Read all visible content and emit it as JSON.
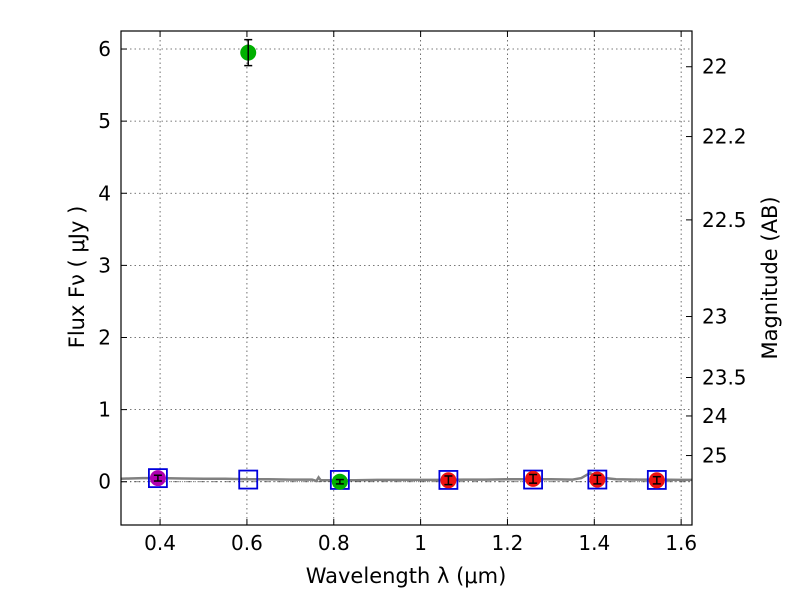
{
  "chart_data": {
    "type": "scatter",
    "xlabel": "Wavelength  λ (μm)",
    "ylabel": "Flux  Fν  ( μJy )",
    "ylabel_right": "Magnitude (AB)",
    "xlim": [
      0.31,
      1.625
    ],
    "ylim": [
      -0.6,
      6.25
    ],
    "grid": true,
    "x_ticks": [
      {
        "value": 0.4,
        "label": "0.4"
      },
      {
        "value": 0.6,
        "label": "0.6"
      },
      {
        "value": 0.8,
        "label": "0.8"
      },
      {
        "value": 1.0,
        "label": "1"
      },
      {
        "value": 1.2,
        "label": "1.2"
      },
      {
        "value": 1.4,
        "label": "1.4"
      },
      {
        "value": 1.6,
        "label": "1.6"
      }
    ],
    "y_ticks": [
      {
        "value": 0,
        "label": "0"
      },
      {
        "value": 1,
        "label": "1"
      },
      {
        "value": 2,
        "label": "2"
      },
      {
        "value": 3,
        "label": "3"
      },
      {
        "value": 4,
        "label": "4"
      },
      {
        "value": 5,
        "label": "5"
      },
      {
        "value": 6,
        "label": "6"
      }
    ],
    "mag_ticks": [
      {
        "value": 22,
        "label": "22"
      },
      {
        "value": 22.2,
        "label": "22.2"
      },
      {
        "value": 22.5,
        "label": "22.5"
      },
      {
        "value": 23,
        "label": "23"
      },
      {
        "value": 23.5,
        "label": "23.5"
      },
      {
        "value": 24,
        "label": "24"
      },
      {
        "value": 25,
        "label": "25"
      }
    ],
    "model_spectrum": [
      [
        0.31,
        0.04
      ],
      [
        0.33,
        0.045
      ],
      [
        0.36,
        0.05
      ],
      [
        0.4,
        0.05
      ],
      [
        0.45,
        0.045
      ],
      [
        0.5,
        0.04
      ],
      [
        0.55,
        0.04
      ],
      [
        0.6,
        0.035
      ],
      [
        0.65,
        0.035
      ],
      [
        0.7,
        0.03
      ],
      [
        0.75,
        0.03
      ],
      [
        0.76,
        0.01
      ],
      [
        0.765,
        0.06
      ],
      [
        0.77,
        0.02
      ],
      [
        0.8,
        0.02
      ],
      [
        0.85,
        0.02
      ],
      [
        0.9,
        0.025
      ],
      [
        0.95,
        0.025
      ],
      [
        1.0,
        0.025
      ],
      [
        1.05,
        0.025
      ],
      [
        1.1,
        0.03
      ],
      [
        1.15,
        0.03
      ],
      [
        1.2,
        0.035
      ],
      [
        1.25,
        0.035
      ],
      [
        1.3,
        0.035
      ],
      [
        1.35,
        0.03
      ],
      [
        1.37,
        0.05
      ],
      [
        1.39,
        0.12
      ],
      [
        1.41,
        0.06
      ],
      [
        1.45,
        0.035
      ],
      [
        1.5,
        0.03
      ],
      [
        1.55,
        0.03
      ],
      [
        1.6,
        0.025
      ],
      [
        1.625,
        0.025
      ]
    ],
    "model_points": [
      {
        "x": 0.395,
        "y": 0.05
      },
      {
        "x": 0.603,
        "y": 0.03
      },
      {
        "x": 0.814,
        "y": 0.025
      },
      {
        "x": 1.064,
        "y": 0.025
      },
      {
        "x": 1.259,
        "y": 0.03
      },
      {
        "x": 1.407,
        "y": 0.03
      },
      {
        "x": 1.544,
        "y": 0.025
      }
    ],
    "observed": [
      {
        "x": 0.395,
        "y": 0.05,
        "err": 0.04,
        "color": "#b000b0"
      },
      {
        "x": 0.603,
        "y": 5.95,
        "err": 0.18,
        "color": "#00b000"
      },
      {
        "x": 0.814,
        "y": 0.0,
        "err": 0.03,
        "color": "#00b000"
      },
      {
        "x": 1.064,
        "y": 0.02,
        "err": 0.06,
        "color": "#ee1111"
      },
      {
        "x": 1.259,
        "y": 0.04,
        "err": 0.06,
        "color": "#ee1111"
      },
      {
        "x": 1.407,
        "y": 0.03,
        "err": 0.06,
        "color": "#ee1111"
      },
      {
        "x": 1.544,
        "y": 0.02,
        "err": 0.05,
        "color": "#ee1111"
      }
    ],
    "colors": {
      "model_line": "#808080",
      "model_marker": "#0000dd",
      "errorbar": "#000000"
    }
  }
}
